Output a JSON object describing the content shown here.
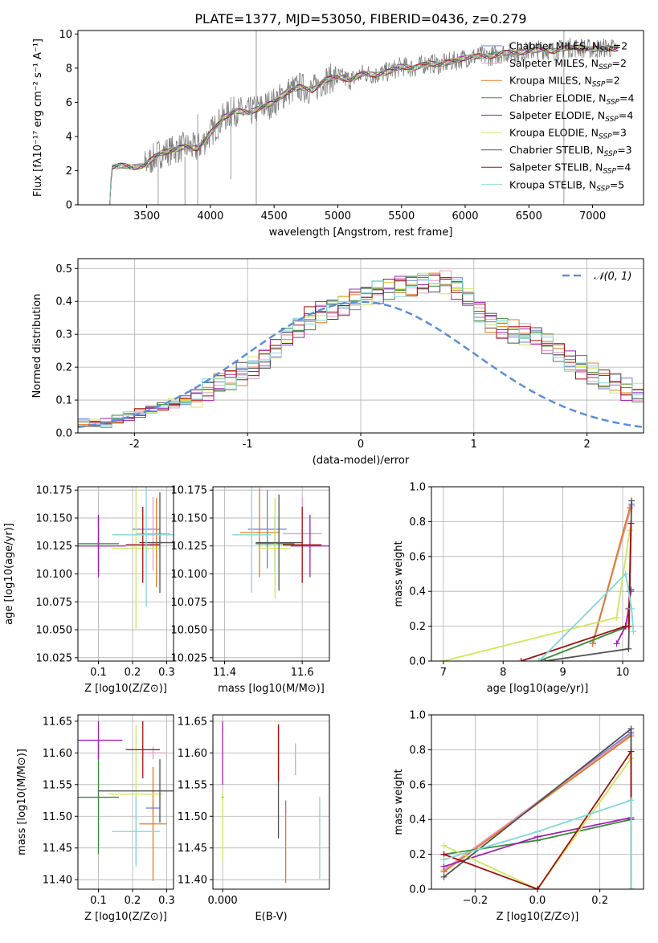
{
  "figure": {
    "title": "PLATE=1377, MJD=53050, FIBERID=0436, z=0.279"
  },
  "models": [
    {
      "name": "Chabrier MILES",
      "nssp": "2",
      "color": "#6a7fd6"
    },
    {
      "name": "Salpeter MILES",
      "nssp": "2",
      "color": "#e89ac7"
    },
    {
      "name": "Kroupa MILES",
      "nssp": "2",
      "color": "#e07b20"
    },
    {
      "name": "Chabrier ELODIE",
      "nssp": "4",
      "color": "#3a8a3a"
    },
    {
      "name": "Salpeter ELODIE",
      "nssp": "4",
      "color": "#a020b0"
    },
    {
      "name": "Kroupa ELODIE",
      "nssp": "3",
      "color": "#cde85a"
    },
    {
      "name": "Chabrier STELIB",
      "nssp": "3",
      "color": "#505050"
    },
    {
      "name": "Salpeter STELIB",
      "nssp": "4",
      "color": "#a01010"
    },
    {
      "name": "Kroupa STELIB",
      "nssp": "5",
      "color": "#80d8d8"
    }
  ],
  "chart_data": [
    {
      "id": "spectrum",
      "type": "line",
      "xlabel": "wavelength [Angstrom, rest frame]",
      "ylabel": "Flux [fλ10⁻¹⁷ erg cm⁻² s⁻¹ A⁻¹]",
      "xlim": [
        2960,
        7400
      ],
      "ylim": [
        0,
        10.2
      ],
      "xticks": [
        3500,
        4000,
        4500,
        5000,
        5500,
        6000,
        6500,
        7000
      ],
      "yticks": [
        0,
        2,
        4,
        6,
        8,
        10
      ],
      "data_color": "#808080",
      "continuum": {
        "x": [
          3200,
          3230,
          3300,
          3400,
          3480,
          3600,
          3700,
          3800,
          3900,
          3980,
          4100,
          4200,
          4300,
          4400,
          4500,
          4600,
          4700,
          4800,
          4900,
          5000,
          5100,
          5200,
          5300,
          5400,
          5500,
          5600,
          5700,
          5800,
          5900,
          6000,
          6100,
          6200,
          6300,
          6400,
          6500,
          6600,
          6700,
          6800,
          6900,
          7000,
          7100,
          7200
        ],
        "y": [
          0,
          2.2,
          2.3,
          2.2,
          2.3,
          3.0,
          3.2,
          3.4,
          3.3,
          4.0,
          5.1,
          5.5,
          5.4,
          5.7,
          6.0,
          6.6,
          6.9,
          6.7,
          7.3,
          7.5,
          7.3,
          7.7,
          7.6,
          7.8,
          8.1,
          8.0,
          8.3,
          8.2,
          8.4,
          8.6,
          8.7,
          8.7,
          8.9,
          8.9,
          9.0,
          9.1,
          9.0,
          9.2,
          9.2,
          9.1,
          9.2,
          9.1
        ]
      },
      "legend_position": "right"
    },
    {
      "id": "residual-histogram",
      "type": "bar",
      "xlabel": "(data-model)/error",
      "ylabel": "Normed distribution",
      "xlim": [
        -2.5,
        2.5
      ],
      "ylim": [
        0,
        0.53
      ],
      "xticks": [
        -2,
        -1,
        0,
        1,
        2
      ],
      "yticks": [
        0.0,
        0.1,
        0.2,
        0.3,
        0.4,
        0.5
      ],
      "bin_width": 0.1,
      "base_values": [
        0.02,
        0.03,
        0.03,
        0.03,
        0.04,
        0.05,
        0.06,
        0.07,
        0.08,
        0.09,
        0.1,
        0.11,
        0.13,
        0.15,
        0.16,
        0.18,
        0.2,
        0.23,
        0.26,
        0.29,
        0.32,
        0.35,
        0.37,
        0.38,
        0.39,
        0.41,
        0.42,
        0.43,
        0.44,
        0.45,
        0.45,
        0.46,
        0.46,
        0.46,
        0.44,
        0.41,
        0.37,
        0.34,
        0.32,
        0.31,
        0.3,
        0.29,
        0.27,
        0.25,
        0.22,
        0.2,
        0.18,
        0.16,
        0.15,
        0.13,
        0.12,
        0.1,
        0.09,
        0.08,
        0.07,
        0.06,
        0.05,
        0.04,
        0.04,
        0.03,
        0.03,
        0.03,
        0.03
      ],
      "base_start": -2.6,
      "reference_curve": {
        "name": "𝒩(0, 1)",
        "color": "#5b8fd8",
        "mean": 0,
        "sigma": 1
      },
      "legend_position": "top-right"
    },
    {
      "id": "age-vs-z",
      "type": "scatter",
      "xlabel": "Z [log10(Z/Z⊙)]",
      "ylabel": "age  [log10(age/yr)]",
      "xlim": [
        0.04,
        0.32
      ],
      "ylim": [
        10.022,
        10.178
      ],
      "xticks": [
        0.1,
        0.2,
        0.3
      ],
      "yticks": [
        10.025,
        10.05,
        10.075,
        10.1,
        10.125,
        10.15,
        10.175
      ],
      "ytick_labels": [
        "10.025",
        "10.050",
        "10.075",
        "10.100",
        "10.125",
        "10.150",
        "10.175"
      ],
      "points": [
        {
          "x": 0.24,
          "y": 10.14,
          "xerr": 0.04,
          "yerr": 0.0,
          "model": 0
        },
        {
          "x": 0.26,
          "y": 10.136,
          "xerr": 0.05,
          "yerr": 0.033,
          "model": 1
        },
        {
          "x": 0.27,
          "y": 10.128,
          "xerr": 0.02,
          "yerr": 0.04,
          "model": 2
        },
        {
          "x": 0.1,
          "y": 10.127,
          "xerr": 0.06,
          "yerr": 0.025,
          "model": 3
        },
        {
          "x": 0.1,
          "y": 10.125,
          "xerr": 0.08,
          "yerr": 0.028,
          "model": 4
        },
        {
          "x": 0.21,
          "y": 10.123,
          "xerr": 0.07,
          "yerr": 0.072,
          "model": 5
        },
        {
          "x": 0.28,
          "y": 10.128,
          "xerr": 0.06,
          "yerr": 0.045,
          "model": 6
        },
        {
          "x": 0.23,
          "y": 10.126,
          "xerr": 0.05,
          "yerr": 0.034,
          "model": 7
        },
        {
          "x": 0.24,
          "y": 10.135,
          "xerr": 0.1,
          "yerr": 0.064,
          "model": 8
        }
      ]
    },
    {
      "id": "age-vs-mass",
      "type": "scatter",
      "xlabel": "mass [log10(M/M⊙)]",
      "ylabel": "",
      "xlim": [
        11.37,
        11.67
      ],
      "ylim": [
        10.022,
        10.178
      ],
      "xticks": [
        11.4,
        11.6
      ],
      "yticks": [
        10.025,
        10.05,
        10.075,
        10.1,
        10.125,
        10.15,
        10.175
      ],
      "ytick_labels": [
        "10.025",
        "10.050",
        "10.075",
        "10.100",
        "10.125",
        "10.150",
        "10.175"
      ],
      "points": [
        {
          "x": 11.51,
          "y": 10.14,
          "xerr": 0.05,
          "yerr": 0.035,
          "model": 0
        },
        {
          "x": 11.6,
          "y": 10.136,
          "xerr": 0.05,
          "yerr": 0.033,
          "model": 1
        },
        {
          "x": 11.49,
          "y": 10.137,
          "xerr": 0.05,
          "yerr": 0.04,
          "model": 2
        },
        {
          "x": 11.53,
          "y": 10.127,
          "xerr": 0.05,
          "yerr": 0.025,
          "model": 3
        },
        {
          "x": 11.62,
          "y": 10.125,
          "xerr": 0.05,
          "yerr": 0.028,
          "model": 4
        },
        {
          "x": 11.53,
          "y": 10.123,
          "xerr": 0.04,
          "yerr": 0.045,
          "model": 5
        },
        {
          "x": 11.54,
          "y": 10.128,
          "xerr": 0.06,
          "yerr": 0.043,
          "model": 6
        },
        {
          "x": 11.6,
          "y": 10.126,
          "xerr": 0.05,
          "yerr": 0.034,
          "model": 7
        },
        {
          "x": 11.47,
          "y": 10.135,
          "xerr": 0.05,
          "yerr": 0.052,
          "model": 8
        }
      ]
    },
    {
      "id": "weight-vs-age",
      "type": "line",
      "xlabel": "age  [log10(age/yr)]",
      "ylabel": "mass weight",
      "xlim": [
        6.8,
        10.35
      ],
      "ylim": [
        0,
        1
      ],
      "xticks": [
        7,
        8,
        9,
        10
      ],
      "yticks": [
        0.0,
        0.2,
        0.4,
        0.6,
        0.8,
        1.0
      ],
      "series": [
        {
          "model": 0,
          "x": [
            9.5,
            10.15
          ],
          "y": [
            0.1,
            0.9
          ]
        },
        {
          "model": 1,
          "x": [
            9.5,
            10.15
          ],
          "y": [
            0.11,
            0.89
          ]
        },
        {
          "model": 2,
          "x": [
            9.5,
            10.12
          ],
          "y": [
            0.1,
            0.88
          ]
        },
        {
          "model": 3,
          "x": [
            8.6,
            10.1,
            10.12,
            10.14
          ],
          "y": [
            0.0,
            0.2,
            0.4,
            0.4
          ]
        },
        {
          "model": 4,
          "x": [
            9.9,
            10.05,
            10.1,
            10.14
          ],
          "y": [
            0.1,
            0.2,
            0.3,
            0.41
          ]
        },
        {
          "model": 5,
          "x": [
            7.0,
            9.9,
            10.12
          ],
          "y": [
            0.0,
            0.25,
            0.75
          ]
        },
        {
          "model": 6,
          "x": [
            8.7,
            10.1,
            10.15
          ],
          "y": [
            0.0,
            0.07,
            0.92
          ]
        },
        {
          "model": 7,
          "x": [
            8.3,
            10.05,
            10.1,
            10.14
          ],
          "y": [
            0.0,
            0.2,
            0.2,
            0.79
          ]
        },
        {
          "model": 8,
          "x": [
            8.6,
            10.05,
            10.15,
            10.18
          ],
          "y": [
            0.0,
            0.5,
            0.3,
            0.17
          ]
        }
      ]
    },
    {
      "id": "mass-vs-z",
      "type": "scatter",
      "xlabel": "Z [log10(Z/Z⊙)]",
      "ylabel": "mass [log10(M/M⊙)]",
      "xlim": [
        0.04,
        0.32
      ],
      "ylim": [
        11.385,
        11.66
      ],
      "xticks": [
        0.1,
        0.2,
        0.3
      ],
      "yticks": [
        11.4,
        11.45,
        11.5,
        11.55,
        11.6,
        11.65
      ],
      "ytick_labels": [
        "11.40",
        "11.45",
        "11.50",
        "11.55",
        "11.60",
        "11.65"
      ],
      "points": [
        {
          "x": 0.26,
          "y": 11.513,
          "xerr": 0.02,
          "yerr": 0.01,
          "model": 0
        },
        {
          "x": 0.26,
          "y": 11.6,
          "xerr": 0.04,
          "yerr": 0.01,
          "model": 1
        },
        {
          "x": 0.26,
          "y": 11.488,
          "xerr": 0.04,
          "yerr": 0.09,
          "model": 2
        },
        {
          "x": 0.1,
          "y": 11.53,
          "xerr": 0.06,
          "yerr": 0.09,
          "model": 3
        },
        {
          "x": 0.1,
          "y": 11.62,
          "xerr": 0.07,
          "yerr": 0.03,
          "model": 4
        },
        {
          "x": 0.21,
          "y": 11.535,
          "xerr": 0.08,
          "yerr": 0.11,
          "model": 5
        },
        {
          "x": 0.28,
          "y": 11.54,
          "xerr": 0.18,
          "yerr": 0.05,
          "model": 6
        },
        {
          "x": 0.23,
          "y": 11.605,
          "xerr": 0.05,
          "yerr": 0.045,
          "model": 7
        },
        {
          "x": 0.21,
          "y": 11.476,
          "xerr": 0.07,
          "yerr": 0.055,
          "model": 8
        }
      ]
    },
    {
      "id": "mass-vs-ebv",
      "type": "scatter",
      "xlabel": "E(B-V)",
      "ylabel": "",
      "xlim": [
        -0.004,
        0.044
      ],
      "ylim": [
        11.385,
        11.66
      ],
      "xticks": [
        0.0
      ],
      "xtick_labels": [
        "0.000"
      ],
      "yticks": [
        11.4,
        11.45,
        11.5,
        11.55,
        11.6,
        11.65
      ],
      "ytick_labels": [
        "11.40",
        "11.45",
        "11.50",
        "11.55",
        "11.60",
        "11.65"
      ],
      "points": [
        {
          "x": 0.026,
          "y": 11.515,
          "xerr": 0,
          "yerr": 0.01,
          "model": 0
        },
        {
          "x": 0.03,
          "y": 11.59,
          "xerr": 0,
          "yerr": 0.025,
          "model": 1
        },
        {
          "x": 0.026,
          "y": 11.455,
          "xerr": 0,
          "yerr": 0.06,
          "model": 2
        },
        {
          "x": 0.0,
          "y": 11.53,
          "xerr": 0,
          "yerr": 0.0,
          "model": 3
        },
        {
          "x": 0.0,
          "y": 11.6,
          "xerr": 0,
          "yerr": 0.05,
          "model": 4
        },
        {
          "x": 0.0,
          "y": 11.485,
          "xerr": 0,
          "yerr": 0.055,
          "model": 5
        },
        {
          "x": 0.023,
          "y": 11.555,
          "xerr": 0,
          "yerr": 0.09,
          "model": 6
        },
        {
          "x": 0.023,
          "y": 11.6,
          "xerr": 0,
          "yerr": 0.045,
          "model": 7
        },
        {
          "x": 0.04,
          "y": 11.466,
          "xerr": 0,
          "yerr": 0.065,
          "model": 8
        }
      ]
    },
    {
      "id": "weight-vs-z",
      "type": "line",
      "xlabel": "Z [log10(Z/Z⊙)]",
      "ylabel": "mass weight",
      "xlim": [
        -0.34,
        0.34
      ],
      "ylim": [
        0,
        1
      ],
      "xticks": [
        -0.2,
        0.0,
        0.2
      ],
      "xtick_labels": [
        "−0.2",
        "0.0",
        "0.2"
      ],
      "yticks": [
        0.0,
        0.2,
        0.4,
        0.6,
        0.8,
        1.0
      ],
      "series": [
        {
          "model": 0,
          "x": [
            -0.3,
            0.3
          ],
          "y": [
            0.1,
            0.9
          ]
        },
        {
          "model": 1,
          "x": [
            -0.3,
            0.3
          ],
          "y": [
            0.11,
            0.89
          ]
        },
        {
          "model": 2,
          "x": [
            -0.3,
            0.3
          ],
          "y": [
            0.1,
            0.88
          ]
        },
        {
          "model": 3,
          "x": [
            -0.3,
            0.0,
            0.3
          ],
          "y": [
            0.2,
            0.28,
            0.4
          ]
        },
        {
          "model": 4,
          "x": [
            -0.3,
            0.0,
            0.3
          ],
          "y": [
            0.13,
            0.3,
            0.41
          ]
        },
        {
          "model": 5,
          "x": [
            -0.3,
            0.0,
            0.3,
            0.3
          ],
          "y": [
            0.25,
            0.0,
            0.75,
            0.0
          ]
        },
        {
          "model": 6,
          "x": [
            -0.3,
            0.3,
            0.3
          ],
          "y": [
            0.07,
            0.92,
            0.4
          ]
        },
        {
          "model": 7,
          "x": [
            -0.3,
            0.0,
            0.3,
            0.3
          ],
          "y": [
            0.2,
            0.0,
            0.79,
            0.0
          ]
        },
        {
          "model": 8,
          "x": [
            -0.3,
            0.0,
            0.3,
            0.3
          ],
          "y": [
            0.17,
            0.33,
            0.51,
            0.0
          ]
        }
      ]
    }
  ]
}
